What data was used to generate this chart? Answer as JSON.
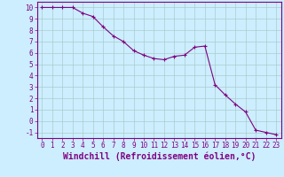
{
  "x": [
    0,
    1,
    2,
    3,
    4,
    5,
    6,
    7,
    8,
    9,
    10,
    11,
    12,
    13,
    14,
    15,
    16,
    17,
    18,
    19,
    20,
    21,
    22,
    23
  ],
  "y": [
    10,
    10,
    10,
    10,
    9.5,
    9.2,
    8.3,
    7.5,
    7.0,
    6.2,
    5.8,
    5.5,
    5.4,
    5.7,
    5.8,
    6.5,
    6.6,
    3.2,
    2.3,
    1.5,
    0.8,
    -0.8,
    -1.0,
    -1.2
  ],
  "line_color": "#800080",
  "marker": "+",
  "marker_size": 3,
  "bg_color": "#cceeff",
  "grid_color": "#aacccc",
  "title": "",
  "xlabel": "Windchill (Refroidissement éolien,°C)",
  "ylabel": "",
  "xlim": [
    -0.5,
    23.5
  ],
  "ylim": [
    -1.5,
    10.5
  ],
  "yticks": [
    -1,
    0,
    1,
    2,
    3,
    4,
    5,
    6,
    7,
    8,
    9,
    10
  ],
  "ytick_labels": [
    "-1",
    "0",
    "1",
    "2",
    "3",
    "4",
    "5",
    "6",
    "7",
    "8",
    "9",
    "10"
  ],
  "xticks": [
    0,
    1,
    2,
    3,
    4,
    5,
    6,
    7,
    8,
    9,
    10,
    11,
    12,
    13,
    14,
    15,
    16,
    17,
    18,
    19,
    20,
    21,
    22,
    23
  ],
  "xtick_labels": [
    "0",
    "1",
    "2",
    "3",
    "4",
    "5",
    "6",
    "7",
    "8",
    "9",
    "10",
    "11",
    "12",
    "13",
    "14",
    "15",
    "16",
    "17",
    "18",
    "19",
    "20",
    "21",
    "22",
    "23"
  ],
  "tick_color": "#800080",
  "label_color": "#800080",
  "tick_fontsize": 5.5,
  "xlabel_fontsize": 7.0,
  "spine_color": "#800080",
  "line_width": 0.8,
  "marker_edge_width": 0.8
}
